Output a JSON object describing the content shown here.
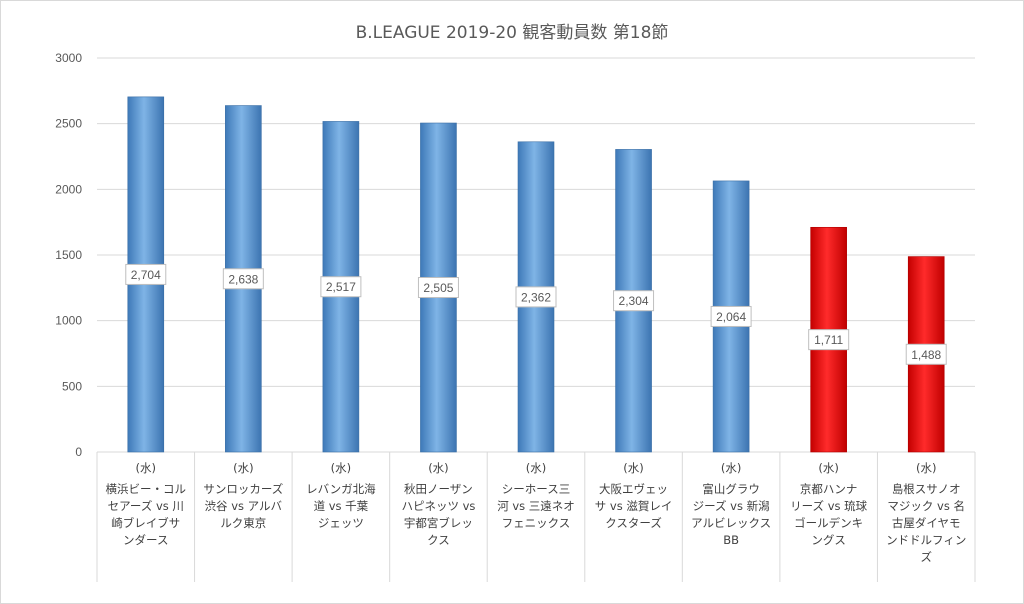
{
  "chart_data": {
    "type": "bar",
    "title": "B.LEAGUE 2019-20 観客動員数 第18節",
    "xlabel": "",
    "ylabel": "",
    "ylim": [
      0,
      3000
    ],
    "yticks": [
      0,
      500,
      1000,
      1500,
      2000,
      2500,
      3000
    ],
    "grid": true,
    "categories": [
      {
        "day": "(水)",
        "match": "横浜ビー・コルセアーズ vs 川崎ブレイブサンダース"
      },
      {
        "day": "(水)",
        "match": "サンロッカーズ渋谷 vs アルバルク東京"
      },
      {
        "day": "(水)",
        "match": "レバンガ北海道 vs 千葉ジェッツ"
      },
      {
        "day": "(水)",
        "match": "秋田ノーザンハピネッツ vs 宇都宮ブレックス"
      },
      {
        "day": "(水)",
        "match": "シーホース三河 vs 三遠ネオフェニックス"
      },
      {
        "day": "(水)",
        "match": "大阪エヴェッサ vs 滋賀レイクスターズ"
      },
      {
        "day": "(水)",
        "match": "富山グラウジーズ vs 新潟アルビレックスBB"
      },
      {
        "day": "(水)",
        "match": "京都ハンナリーズ vs 琉球ゴールデンキングス"
      },
      {
        "day": "(水)",
        "match": "島根スサノオマジック vs 名古屋ダイヤモンドドルフィンズ"
      }
    ],
    "values": [
      2704,
      2638,
      2517,
      2505,
      2362,
      2304,
      2064,
      1711,
      1488
    ],
    "data_labels": [
      "2,704",
      "2,638",
      "2,517",
      "2,505",
      "2,362",
      "2,304",
      "2,064",
      "1,711",
      "1,488"
    ],
    "bar_colors": [
      "#5b9bd5",
      "#5b9bd5",
      "#5b9bd5",
      "#5b9bd5",
      "#5b9bd5",
      "#5b9bd5",
      "#5b9bd5",
      "#ff0000",
      "#ff0000"
    ]
  },
  "category_lines": [
    [
      "横浜ビー・コル",
      "セアーズ vs 川",
      "崎ブレイブサ",
      "ンダース"
    ],
    [
      "サンロッカーズ",
      "渋谷 vs アルバ",
      "ルク東京"
    ],
    [
      "レバンガ北海",
      "道 vs 千葉",
      "ジェッツ"
    ],
    [
      "秋田ノーザン",
      "ハピネッツ vs",
      "宇都宮ブレッ",
      "クス"
    ],
    [
      "シーホース三",
      "河 vs 三遠ネオ",
      "フェニックス"
    ],
    [
      "大阪エヴェッ",
      "サ vs 滋賀レイ",
      "クスターズ"
    ],
    [
      "富山グラウ",
      "ジーズ vs 新潟",
      "アルビレックス",
      "BB"
    ],
    [
      "京都ハンナ",
      "リーズ vs 琉球",
      "ゴールデンキ",
      "ングス"
    ],
    [
      "島根スサノオ",
      "マジック vs 名",
      "古屋ダイヤモ",
      "ンドドルフィン",
      "ズ"
    ]
  ]
}
